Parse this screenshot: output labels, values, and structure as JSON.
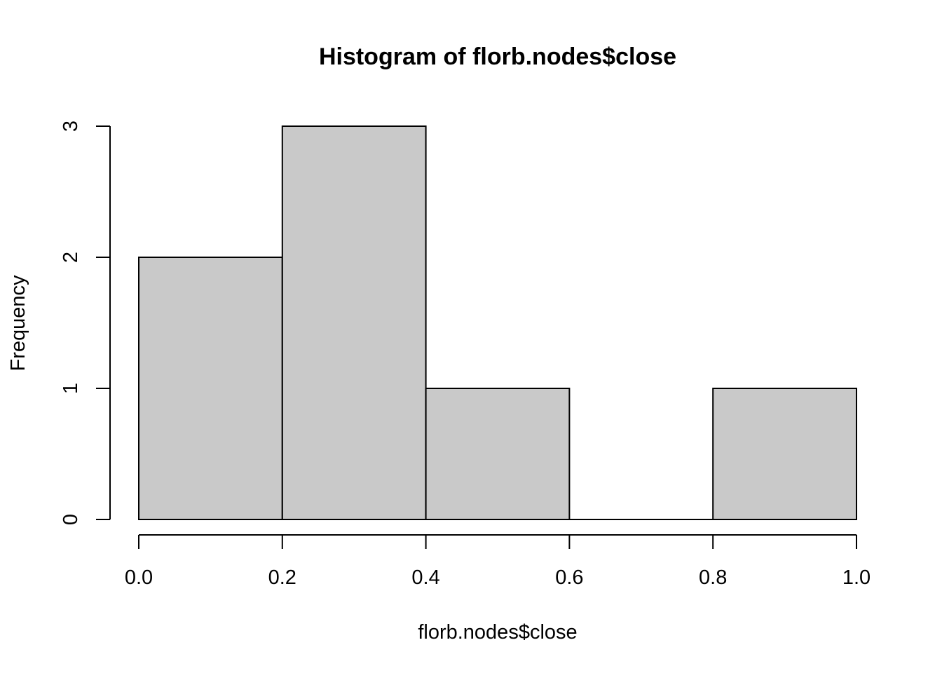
{
  "chart_data": {
    "type": "bar",
    "title": "Histogram of florb.nodes$close",
    "xlabel": "florb.nodes$close",
    "ylabel": "Frequency",
    "bins": [
      {
        "start": 0.0,
        "end": 0.2,
        "count": 2
      },
      {
        "start": 0.2,
        "end": 0.4,
        "count": 3
      },
      {
        "start": 0.4,
        "end": 0.6,
        "count": 1
      },
      {
        "start": 0.6,
        "end": 0.8,
        "count": 0
      },
      {
        "start": 0.8,
        "end": 1.0,
        "count": 1
      }
    ],
    "xlim": [
      0.0,
      1.0
    ],
    "ylim": [
      0,
      3
    ],
    "x_ticks": [
      0.0,
      0.2,
      0.4,
      0.6,
      0.8,
      1.0
    ],
    "x_tick_labels": [
      "0.0",
      "0.2",
      "0.4",
      "0.6",
      "0.8",
      "1.0"
    ],
    "y_ticks": [
      0,
      1,
      2,
      3
    ],
    "y_tick_labels": [
      "0",
      "1",
      "2",
      "3"
    ],
    "grid": false,
    "bar_color": "#c9c9c9",
    "edge_color": "#000000"
  }
}
